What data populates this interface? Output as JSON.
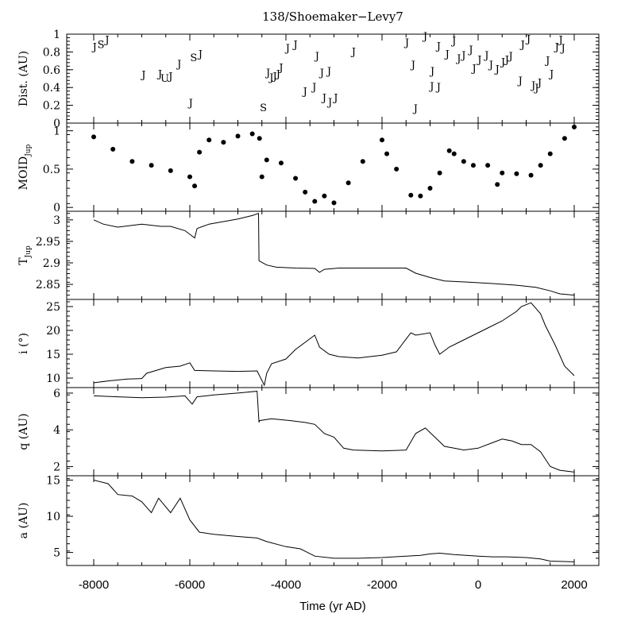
{
  "title": "138/Shoemaker−Levy7",
  "xlabel": "Time (yr AD)",
  "x_ticks": [
    -8000,
    -6000,
    -4000,
    -2000,
    0,
    2000
  ],
  "x_tick_labels": [
    "-8000",
    "-6000",
    "-4000",
    "-2000",
    "0",
    "2000"
  ],
  "chart_data": [
    {
      "type": "scatter",
      "id": "dist",
      "ylabel": "Dist. (AU)",
      "ylim": [
        0,
        1
      ],
      "y_ticks": [
        0,
        0.2,
        0.4,
        0.6,
        0.8,
        1
      ],
      "y_tick_labels": [
        "0",
        "0.2",
        "0.4",
        "0.6",
        "0.8",
        "1"
      ],
      "marker": "letter",
      "points": [
        {
          "x": -7980,
          "y": 0.86,
          "label": "J"
        },
        {
          "x": -7850,
          "y": 0.89,
          "label": "S"
        },
        {
          "x": -7720,
          "y": 0.94,
          "label": "J"
        },
        {
          "x": -6960,
          "y": 0.55,
          "label": "J"
        },
        {
          "x": -6620,
          "y": 0.56,
          "label": "J"
        },
        {
          "x": -6520,
          "y": 0.51,
          "label": "U"
        },
        {
          "x": -6400,
          "y": 0.53,
          "label": "J"
        },
        {
          "x": -6220,
          "y": 0.67,
          "label": "J"
        },
        {
          "x": -5980,
          "y": 0.23,
          "label": "J"
        },
        {
          "x": -5920,
          "y": 0.74,
          "label": "S"
        },
        {
          "x": -5780,
          "y": 0.78,
          "label": "J"
        },
        {
          "x": -4470,
          "y": 0.18,
          "label": "S"
        },
        {
          "x": -4370,
          "y": 0.57,
          "label": "J"
        },
        {
          "x": -4300,
          "y": 0.52,
          "label": "J"
        },
        {
          "x": -4230,
          "y": 0.53,
          "label": "J"
        },
        {
          "x": -4160,
          "y": 0.56,
          "label": "J"
        },
        {
          "x": -4100,
          "y": 0.63,
          "label": "J"
        },
        {
          "x": -3960,
          "y": 0.85,
          "label": "J"
        },
        {
          "x": -3800,
          "y": 0.89,
          "label": "J"
        },
        {
          "x": -3600,
          "y": 0.36,
          "label": "J"
        },
        {
          "x": -3410,
          "y": 0.41,
          "label": "J"
        },
        {
          "x": -3350,
          "y": 0.76,
          "label": "J"
        },
        {
          "x": -3250,
          "y": 0.57,
          "label": "J"
        },
        {
          "x": -3200,
          "y": 0.29,
          "label": "J"
        },
        {
          "x": -3100,
          "y": 0.59,
          "label": "J"
        },
        {
          "x": -3080,
          "y": 0.24,
          "label": "J"
        },
        {
          "x": -2960,
          "y": 0.29,
          "label": "J"
        },
        {
          "x": -2590,
          "y": 0.81,
          "label": "J"
        },
        {
          "x": -1480,
          "y": 0.91,
          "label": "J"
        },
        {
          "x": -1350,
          "y": 0.66,
          "label": "J"
        },
        {
          "x": -1300,
          "y": 0.17,
          "label": "J"
        },
        {
          "x": -1100,
          "y": 0.98,
          "label": "J"
        },
        {
          "x": -950,
          "y": 0.59,
          "label": "J"
        },
        {
          "x": -960,
          "y": 0.42,
          "label": "J"
        },
        {
          "x": -820,
          "y": 0.87,
          "label": "J"
        },
        {
          "x": -820,
          "y": 0.41,
          "label": "J"
        },
        {
          "x": -640,
          "y": 0.78,
          "label": "J"
        },
        {
          "x": -500,
          "y": 0.93,
          "label": "J"
        },
        {
          "x": -400,
          "y": 0.73,
          "label": "J"
        },
        {
          "x": -300,
          "y": 0.77,
          "label": "J"
        },
        {
          "x": -150,
          "y": 0.83,
          "label": "J"
        },
        {
          "x": -80,
          "y": 0.62,
          "label": "J"
        },
        {
          "x": 30,
          "y": 0.72,
          "label": "J"
        },
        {
          "x": 180,
          "y": 0.77,
          "label": "J"
        },
        {
          "x": 270,
          "y": 0.66,
          "label": "J"
        },
        {
          "x": 400,
          "y": 0.61,
          "label": "J"
        },
        {
          "x": 520,
          "y": 0.69,
          "label": "J"
        },
        {
          "x": 600,
          "y": 0.72,
          "label": "J"
        },
        {
          "x": 680,
          "y": 0.76,
          "label": "J"
        },
        {
          "x": 880,
          "y": 0.48,
          "label": "J"
        },
        {
          "x": 930,
          "y": 0.89,
          "label": "J"
        },
        {
          "x": 1050,
          "y": 0.95,
          "label": "J"
        },
        {
          "x": 1150,
          "y": 0.43,
          "label": "J"
        },
        {
          "x": 1220,
          "y": 0.4,
          "label": "J"
        },
        {
          "x": 1280,
          "y": 0.46,
          "label": "J"
        },
        {
          "x": 1450,
          "y": 0.71,
          "label": "J"
        },
        {
          "x": 1530,
          "y": 0.56,
          "label": "J"
        },
        {
          "x": 1640,
          "y": 0.86,
          "label": "J"
        },
        {
          "x": 1720,
          "y": 0.94,
          "label": "J"
        },
        {
          "x": 1770,
          "y": 0.85,
          "label": "J"
        }
      ]
    },
    {
      "type": "scatter",
      "id": "moid",
      "ylabel": "MOID",
      "ylabel_sub": "Jup",
      "ylim": [
        -0.05,
        1.1
      ],
      "y_ticks": [
        0,
        0.5,
        1
      ],
      "y_tick_labels": [
        "0",
        "0.5",
        "1"
      ],
      "marker": "dot",
      "x": [
        -8000,
        -7600,
        -7200,
        -6800,
        -6400,
        -6000,
        -5900,
        -5800,
        -5600,
        -5300,
        -5000,
        -4700,
        -4550,
        -4500,
        -4400,
        -4100,
        -3800,
        -3600,
        -3400,
        -3200,
        -3000,
        -2700,
        -2400,
        -2000,
        -1900,
        -1700,
        -1400,
        -1200,
        -1000,
        -800,
        -600,
        -500,
        -300,
        -100,
        200,
        400,
        500,
        800,
        1100,
        1300,
        1500,
        1800,
        2000
      ],
      "y": [
        0.92,
        0.76,
        0.6,
        0.55,
        0.48,
        0.4,
        0.28,
        0.72,
        0.88,
        0.85,
        0.93,
        0.96,
        0.9,
        0.4,
        0.62,
        0.58,
        0.38,
        0.2,
        0.08,
        0.15,
        0.06,
        0.32,
        0.6,
        0.88,
        0.7,
        0.5,
        0.16,
        0.15,
        0.25,
        0.45,
        0.74,
        0.7,
        0.6,
        0.55,
        0.55,
        0.3,
        0.45,
        0.44,
        0.42,
        0.55,
        0.7,
        0.9,
        1.05
      ]
    },
    {
      "type": "line",
      "id": "tjup",
      "ylabel": "T",
      "ylabel_sub": "Jup",
      "ylim": [
        2.815,
        3.02
      ],
      "y_ticks": [
        2.85,
        2.9,
        2.95,
        3
      ],
      "y_tick_labels": [
        "2.85",
        "2.9",
        "2.95",
        "3"
      ],
      "x": [
        -8000,
        -7800,
        -7500,
        -7000,
        -6600,
        -6400,
        -6100,
        -5900,
        -5850,
        -5600,
        -5300,
        -5000,
        -4700,
        -4570,
        -4560,
        -4400,
        -4200,
        -3800,
        -3400,
        -3300,
        -3200,
        -2900,
        -2500,
        -2000,
        -1500,
        -1300,
        -1000,
        -700,
        -200,
        300,
        800,
        1200,
        1500,
        1700,
        2000
      ],
      "y": [
        3.0,
        2.99,
        2.983,
        2.99,
        2.985,
        2.985,
        2.975,
        2.958,
        2.98,
        2.99,
        2.996,
        3.002,
        3.01,
        3.015,
        2.905,
        2.895,
        2.89,
        2.888,
        2.887,
        2.878,
        2.885,
        2.888,
        2.888,
        2.888,
        2.888,
        2.876,
        2.866,
        2.858,
        2.855,
        2.852,
        2.848,
        2.843,
        2.835,
        2.828,
        2.825
      ]
    },
    {
      "type": "line",
      "id": "incl",
      "ylabel": "i (°)",
      "ylim": [
        8,
        26.5
      ],
      "y_ticks": [
        10,
        15,
        20,
        25
      ],
      "y_tick_labels": [
        "10",
        "15",
        "20",
        "25"
      ],
      "x": [
        -8000,
        -7700,
        -7300,
        -7000,
        -6900,
        -6500,
        -6200,
        -6000,
        -5900,
        -5500,
        -5000,
        -4600,
        -4450,
        -4400,
        -4300,
        -4000,
        -3800,
        -3600,
        -3400,
        -3300,
        -3100,
        -2900,
        -2500,
        -2000,
        -1700,
        -1400,
        -1300,
        -1000,
        -900,
        -800,
        -600,
        -400,
        -100,
        200,
        500,
        800,
        900,
        1100,
        1300,
        1400,
        1600,
        1800,
        2000
      ],
      "y": [
        9.0,
        9.4,
        9.8,
        9.9,
        11.0,
        12.2,
        12.5,
        13.2,
        11.6,
        11.5,
        11.4,
        11.5,
        8.5,
        11.0,
        13.0,
        14.0,
        16.0,
        17.5,
        19.0,
        16.5,
        15.0,
        14.5,
        14.2,
        14.8,
        15.5,
        19.5,
        19.0,
        19.5,
        17.0,
        15.0,
        16.5,
        17.5,
        19.0,
        20.5,
        22.0,
        24.0,
        25.0,
        25.8,
        23.5,
        21.0,
        17.0,
        12.5,
        10.5
      ]
    },
    {
      "type": "line",
      "id": "q",
      "ylabel": "q (AU)",
      "ylim": [
        1.5,
        6.3
      ],
      "y_ticks": [
        2,
        4,
        6
      ],
      "y_tick_labels": [
        "2",
        "4",
        "6"
      ],
      "x": [
        -8000,
        -7500,
        -7000,
        -6500,
        -6100,
        -5950,
        -5850,
        -5500,
        -5000,
        -4600,
        -4560,
        -4550,
        -4300,
        -3900,
        -3600,
        -3400,
        -3200,
        -3000,
        -2800,
        -2600,
        -2000,
        -1500,
        -1300,
        -1100,
        -900,
        -700,
        -500,
        -300,
        0,
        300,
        500,
        700,
        900,
        1100,
        1300,
        1500,
        1700,
        2000
      ],
      "y": [
        5.85,
        5.8,
        5.75,
        5.78,
        5.85,
        5.4,
        5.8,
        5.9,
        6.0,
        6.1,
        4.4,
        4.5,
        4.6,
        4.5,
        4.4,
        4.3,
        3.8,
        3.6,
        3.0,
        2.9,
        2.85,
        2.9,
        3.8,
        4.1,
        3.6,
        3.1,
        3.0,
        2.9,
        3.0,
        3.3,
        3.5,
        3.4,
        3.2,
        3.2,
        2.8,
        2.0,
        1.8,
        1.7
      ]
    },
    {
      "type": "line",
      "id": "a",
      "ylabel": "a (AU)",
      "ylim": [
        3.2,
        15.6
      ],
      "y_ticks": [
        5,
        10,
        15
      ],
      "y_tick_labels": [
        "5",
        "10",
        "15"
      ],
      "x": [
        -8000,
        -7700,
        -7500,
        -7200,
        -7000,
        -6800,
        -6650,
        -6400,
        -6200,
        -6000,
        -5800,
        -5500,
        -5000,
        -4600,
        -4400,
        -4000,
        -3700,
        -3400,
        -3000,
        -2500,
        -2000,
        -1500,
        -1200,
        -1000,
        -800,
        -500,
        0,
        300,
        600,
        1000,
        1300,
        1500,
        2000
      ],
      "y": [
        15.0,
        14.5,
        13.0,
        12.8,
        12.0,
        10.5,
        12.5,
        10.5,
        12.5,
        9.5,
        7.8,
        7.5,
        7.2,
        7.0,
        6.5,
        5.8,
        5.5,
        4.5,
        4.2,
        4.2,
        4.3,
        4.5,
        4.6,
        4.8,
        4.9,
        4.7,
        4.5,
        4.4,
        4.4,
        4.3,
        4.1,
        3.8,
        3.7
      ]
    }
  ]
}
